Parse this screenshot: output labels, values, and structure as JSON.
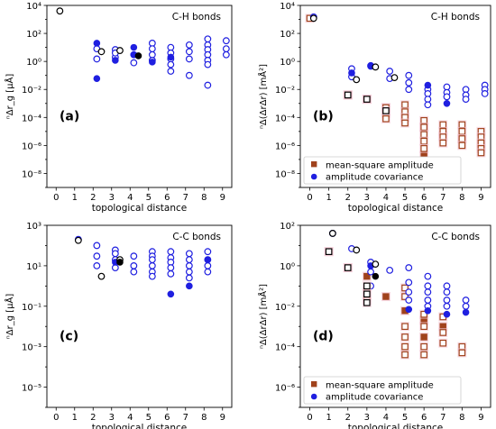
{
  "chart_data": [
    {
      "panel": "(a)",
      "type": "scatter",
      "title": "C-H bonds",
      "xlabel": "topological distance",
      "ylabel": "ⁿΔr_g [μÅ]",
      "y_scale": "log",
      "xlim": [
        -0.5,
        9.5
      ],
      "ylim": [
        1e-09,
        10000.0
      ],
      "x_ticks": [
        0,
        1,
        2,
        3,
        4,
        5,
        6,
        7,
        8,
        9
      ],
      "y_tick_labels": [
        "10⁴",
        "10²",
        "10⁰",
        "10⁻²",
        "10⁻⁴",
        "10⁻⁶",
        "10⁻⁸"
      ],
      "series": [
        {
          "color": "#1f1fe0",
          "style": "open",
          "points": [
            [
              2.2,
              8
            ],
            [
              2.2,
              1.5
            ],
            [
              3.2,
              7
            ],
            [
              3.2,
              2
            ],
            [
              3.2,
              4
            ],
            [
              4.2,
              3
            ],
            [
              4.2,
              0.8
            ],
            [
              5.2,
              20
            ],
            [
              5.2,
              8
            ],
            [
              5.2,
              3
            ],
            [
              5.2,
              1.2
            ],
            [
              6.2,
              10
            ],
            [
              6.2,
              4
            ],
            [
              6.2,
              1.5
            ],
            [
              6.2,
              0.6
            ],
            [
              6.2,
              0.2
            ],
            [
              7.2,
              15
            ],
            [
              7.2,
              5
            ],
            [
              7.2,
              1.5
            ],
            [
              7.2,
              0.1
            ],
            [
              8.2,
              40
            ],
            [
              8.2,
              15
            ],
            [
              8.2,
              7
            ],
            [
              8.2,
              3
            ],
            [
              8.2,
              1.2
            ],
            [
              8.2,
              0.6
            ],
            [
              8.2,
              0.02
            ],
            [
              9.2,
              30
            ],
            [
              9.2,
              8
            ],
            [
              9.2,
              3
            ]
          ]
        },
        {
          "color": "#1f1fe0",
          "style": "filled",
          "points": [
            [
              2.2,
              20
            ],
            [
              2.2,
              0.06
            ],
            [
              3.2,
              1.2
            ],
            [
              4.2,
              10
            ],
            [
              4.2,
              3
            ],
            [
              5.2,
              0.9
            ],
            [
              6.2,
              2
            ]
          ]
        },
        {
          "color": "#000000",
          "style": "open",
          "points": [
            [
              0.2,
              4000
            ],
            [
              2.45,
              5
            ],
            [
              3.45,
              6
            ]
          ]
        },
        {
          "color": "#000000",
          "style": "filled",
          "points": [
            [
              4.45,
              2.5
            ]
          ]
        }
      ]
    },
    {
      "panel": "(b)",
      "type": "scatter",
      "title": "C-H bonds",
      "xlabel": "topological distance",
      "ylabel": "ⁿΔ(ΔrΔr) [mÅ²]",
      "y_scale": "log",
      "xlim": [
        -0.5,
        9.5
      ],
      "ylim": [
        1e-09,
        10000.0
      ],
      "x_ticks": [
        0,
        1,
        2,
        3,
        4,
        5,
        6,
        7,
        8,
        9
      ],
      "y_tick_labels": [
        "10⁴",
        "10²",
        "10⁰",
        "10⁻²",
        "10⁻⁴",
        "10⁻⁶",
        "10⁻⁸"
      ],
      "legend": {
        "placement": "lower-right",
        "entries": [
          "mean-square amplitude",
          "amplitude covariance"
        ]
      },
      "series": [
        {
          "name": "mean-square amplitude",
          "color": "#a0421c",
          "style": "square-filled",
          "points": [
            [
              2.0,
              0.004
            ],
            [
              3.0,
              0.002
            ],
            [
              4.0,
              0.0005
            ],
            [
              5.0,
              0.0001
            ],
            [
              6.0,
              2e-05
            ],
            [
              6.0,
              2e-07
            ],
            [
              7.0,
              5e-06
            ],
            [
              8.0,
              3e-06
            ],
            [
              9.0,
              1e-06
            ]
          ]
        },
        {
          "name": "mean-square amplitude",
          "color": "#a0421c",
          "style": "square-open",
          "points": [
            [
              0.0,
              1200
            ],
            [
              2.0,
              0.004
            ],
            [
              3.0,
              0.002
            ],
            [
              4.0,
              0.0005
            ],
            [
              4.0,
              0.0002
            ],
            [
              4.0,
              8e-05
            ],
            [
              5.0,
              0.0008
            ],
            [
              5.0,
              0.00025
            ],
            [
              5.0,
              0.0001
            ],
            [
              5.0,
              4e-05
            ],
            [
              6.0,
              6e-05
            ],
            [
              6.0,
              2e-05
            ],
            [
              6.0,
              6e-06
            ],
            [
              6.0,
              2e-06
            ],
            [
              6.0,
              6e-07
            ],
            [
              7.0,
              3e-05
            ],
            [
              7.0,
              1e-05
            ],
            [
              7.0,
              4e-06
            ],
            [
              7.0,
              1.5e-06
            ],
            [
              8.0,
              3e-05
            ],
            [
              8.0,
              1e-05
            ],
            [
              8.0,
              3e-06
            ],
            [
              8.0,
              1e-06
            ],
            [
              9.0,
              1e-05
            ],
            [
              9.0,
              4e-06
            ],
            [
              9.0,
              1.5e-06
            ],
            [
              9.0,
              6e-07
            ],
            [
              9.0,
              3e-07
            ]
          ]
        },
        {
          "name": "amplitude covariance",
          "color": "#1f1fe0",
          "style": "open",
          "points": [
            [
              0.2,
              1500
            ],
            [
              2.2,
              0.3
            ],
            [
              2.2,
              0.08
            ],
            [
              3.2,
              0.5
            ],
            [
              4.2,
              0.2
            ],
            [
              4.2,
              0.06
            ],
            [
              5.2,
              0.1
            ],
            [
              5.2,
              0.03
            ],
            [
              5.2,
              0.01
            ],
            [
              6.2,
              0.01
            ],
            [
              6.2,
              0.005
            ],
            [
              6.2,
              0.002
            ],
            [
              6.2,
              0.0008
            ],
            [
              7.2,
              0.015
            ],
            [
              7.2,
              0.006
            ],
            [
              7.2,
              0.003
            ],
            [
              8.2,
              0.01
            ],
            [
              8.2,
              0.004
            ],
            [
              8.2,
              0.002
            ],
            [
              9.2,
              0.02
            ],
            [
              9.2,
              0.01
            ],
            [
              9.2,
              0.005
            ]
          ]
        },
        {
          "name": "amplitude covariance",
          "color": "#1f1fe0",
          "style": "filled",
          "points": [
            [
              2.2,
              0.15
            ],
            [
              3.2,
              0.45
            ],
            [
              6.2,
              0.02
            ],
            [
              7.2,
              0.001
            ]
          ]
        },
        {
          "color": "#000000",
          "style": "open",
          "points": [
            [
              2.45,
              0.05
            ],
            [
              3.45,
              0.4
            ],
            [
              4.45,
              0.07
            ],
            [
              0.2,
              1200
            ]
          ]
        },
        {
          "color": "#000000",
          "style": "square-open",
          "points": [
            [
              2.0,
              0.004
            ],
            [
              3.0,
              0.002
            ],
            [
              4.0,
              0.0003
            ]
          ]
        }
      ]
    },
    {
      "panel": "(c)",
      "type": "scatter",
      "title": "C-C bonds",
      "xlabel": "topological distance",
      "ylabel": "ⁿΔr_g [μÅ]",
      "y_scale": "log",
      "xlim": [
        -0.5,
        9.5
      ],
      "ylim": [
        1e-06,
        1000.0
      ],
      "x_ticks": [
        0,
        1,
        2,
        3,
        4,
        5,
        6,
        7,
        8,
        9
      ],
      "y_tick_labels": [
        "10³",
        "10¹",
        "10⁻¹",
        "10⁻³",
        "10⁻⁵"
      ],
      "series": [
        {
          "color": "#1f1fe0",
          "style": "open",
          "points": [
            [
              1.2,
              200
            ],
            [
              2.2,
              100
            ],
            [
              2.2,
              30
            ],
            [
              2.2,
              10
            ],
            [
              3.2,
              60
            ],
            [
              3.2,
              40
            ],
            [
              3.2,
              20
            ],
            [
              3.2,
              8
            ],
            [
              4.2,
              30
            ],
            [
              4.2,
              10
            ],
            [
              4.2,
              5
            ],
            [
              5.2,
              50
            ],
            [
              5.2,
              30
            ],
            [
              5.2,
              20
            ],
            [
              5.2,
              10
            ],
            [
              5.2,
              5
            ],
            [
              5.2,
              3
            ],
            [
              6.2,
              50
            ],
            [
              6.2,
              25
            ],
            [
              6.2,
              15
            ],
            [
              6.2,
              8
            ],
            [
              6.2,
              4
            ],
            [
              7.2,
              40
            ],
            [
              7.2,
              20
            ],
            [
              7.2,
              10
            ],
            [
              7.2,
              5
            ],
            [
              7.2,
              2.5
            ],
            [
              8.2,
              50
            ],
            [
              8.2,
              20
            ],
            [
              8.2,
              10
            ],
            [
              8.2,
              5
            ]
          ]
        },
        {
          "color": "#1f1fe0",
          "style": "filled",
          "points": [
            [
              3.2,
              15
            ],
            [
              6.2,
              0.4
            ],
            [
              7.2,
              1
            ],
            [
              8.2,
              20
            ]
          ]
        },
        {
          "color": "#000000",
          "style": "open",
          "points": [
            [
              1.2,
              180
            ],
            [
              2.45,
              3
            ],
            [
              3.45,
              20
            ]
          ]
        },
        {
          "color": "#000000",
          "style": "filled",
          "points": [
            [
              3.45,
              15
            ]
          ]
        }
      ]
    },
    {
      "panel": "(d)",
      "type": "scatter",
      "title": "C-C bonds",
      "xlabel": "topological distance",
      "ylabel": "ⁿΔ(ΔrΔr) [mÅ²]",
      "y_scale": "log",
      "xlim": [
        -0.5,
        9.5
      ],
      "ylim": [
        1e-07,
        100.0
      ],
      "x_ticks": [
        0,
        1,
        2,
        3,
        4,
        5,
        6,
        7,
        8,
        9
      ],
      "y_tick_labels": [
        "10²",
        "10⁰",
        "10⁻²",
        "10⁻⁴",
        "10⁻⁶"
      ],
      "legend": {
        "placement": "lower-right",
        "entries": [
          "mean-square amplitude",
          "amplitude covariance"
        ]
      },
      "series": [
        {
          "name": "mean-square amplitude",
          "color": "#a0421c",
          "style": "square-filled",
          "points": [
            [
              1.0,
              5
            ],
            [
              2.0,
              0.8
            ],
            [
              3.0,
              0.3
            ],
            [
              4.0,
              0.03
            ],
            [
              5.0,
              0.006
            ],
            [
              6.0,
              0.002
            ],
            [
              6.0,
              0.0003
            ],
            [
              7.0,
              0.001
            ]
          ]
        },
        {
          "name": "mean-square amplitude",
          "color": "#a0421c",
          "style": "square-open",
          "points": [
            [
              3.0,
              0.05
            ],
            [
              3.0,
              0.02
            ],
            [
              5.0,
              0.08
            ],
            [
              5.0,
              0.03
            ],
            [
              5.0,
              0.001
            ],
            [
              5.0,
              0.0003
            ],
            [
              5.0,
              0.0001
            ],
            [
              5.0,
              4e-05
            ],
            [
              6.0,
              0.004
            ],
            [
              6.0,
              0.001
            ],
            [
              6.0,
              0.0001
            ],
            [
              6.0,
              4e-05
            ],
            [
              7.0,
              0.003
            ],
            [
              7.0,
              0.0005
            ],
            [
              7.0,
              0.00015
            ],
            [
              8.0,
              0.0001
            ],
            [
              8.0,
              5e-05
            ]
          ]
        },
        {
          "name": "amplitude covariance",
          "color": "#1f1fe0",
          "style": "open",
          "points": [
            [
              1.2,
              40
            ],
            [
              2.2,
              7
            ],
            [
              3.2,
              1.5
            ],
            [
              3.2,
              0.5
            ],
            [
              3.2,
              0.1
            ],
            [
              4.2,
              0.6
            ],
            [
              5.2,
              0.8
            ],
            [
              5.2,
              0.15
            ],
            [
              5.2,
              0.05
            ],
            [
              5.2,
              0.02
            ],
            [
              6.2,
              0.3
            ],
            [
              6.2,
              0.1
            ],
            [
              6.2,
              0.05
            ],
            [
              6.2,
              0.02
            ],
            [
              6.2,
              0.01
            ],
            [
              7.2,
              0.1
            ],
            [
              7.2,
              0.05
            ],
            [
              7.2,
              0.02
            ],
            [
              7.2,
              0.01
            ],
            [
              8.2,
              0.02
            ],
            [
              8.2,
              0.01
            ]
          ]
        },
        {
          "name": "amplitude covariance",
          "color": "#1f1fe0",
          "style": "filled",
          "points": [
            [
              3.2,
              1.0
            ],
            [
              5.2,
              0.007
            ],
            [
              6.2,
              0.006
            ],
            [
              7.2,
              0.004
            ],
            [
              8.2,
              0.005
            ]
          ]
        },
        {
          "color": "#000000",
          "style": "open",
          "points": [
            [
              1.2,
              40
            ],
            [
              2.45,
              6
            ],
            [
              3.45,
              1.2
            ]
          ]
        },
        {
          "color": "#000000",
          "style": "filled",
          "points": [
            [
              3.45,
              0.3
            ]
          ]
        },
        {
          "color": "#000000",
          "style": "square-open",
          "points": [
            [
              1.0,
              5
            ],
            [
              2.0,
              0.8
            ],
            [
              3.0,
              0.1
            ],
            [
              3.0,
              0.04
            ],
            [
              3.0,
              0.015
            ]
          ]
        }
      ]
    }
  ]
}
